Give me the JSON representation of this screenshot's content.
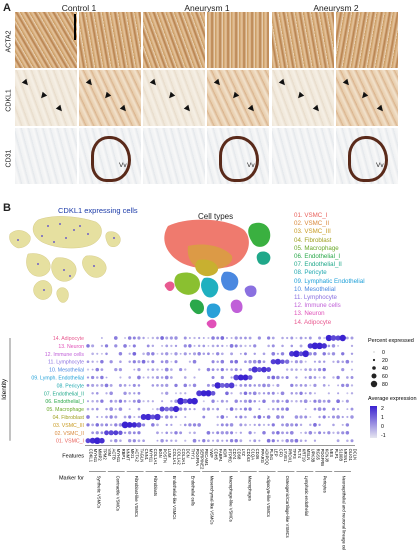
{
  "panel_a": {
    "letter": "A",
    "columns": [
      "Control 1",
      "Aneurysm 1",
      "Aneurysm 2"
    ],
    "rows": [
      "ACTA2",
      "CDKL1",
      "CD31"
    ],
    "vv_label": "Vv"
  },
  "panel_b": {
    "letter": "B",
    "umap1_title": "CDKL1 expressing cells",
    "umap2_title": "Cell types",
    "cell_types": [
      {
        "label": "01. VSMC_I",
        "color": "#e8605a"
      },
      {
        "label": "02. VSMC_II",
        "color": "#d8883a"
      },
      {
        "label": "03. VSMC_III",
        "color": "#c89a20"
      },
      {
        "label": "04. Fibroblast",
        "color": "#a0a020"
      },
      {
        "label": "05. Macrophage",
        "color": "#6aa82a"
      },
      {
        "label": "06. Endothelial_I",
        "color": "#2aa84a"
      },
      {
        "label": "07. Endothelial_II",
        "color": "#20a88a"
      },
      {
        "label": "08. Pericyte",
        "color": "#20a8b0"
      },
      {
        "label": "09. Lymphatic Endothelial",
        "color": "#20a0d8"
      },
      {
        "label": "10. Mesothelial",
        "color": "#4a88e0"
      },
      {
        "label": "11. Lymphocyte",
        "color": "#8a70e0"
      },
      {
        "label": "12. Immune cells",
        "color": "#c060d8"
      },
      {
        "label": "13. Neuron",
        "color": "#e050b8"
      },
      {
        "label": "14. Adipocyte",
        "color": "#e85a90"
      }
    ]
  },
  "chart_data": {
    "type": "scatter",
    "identity_label": "Identity",
    "features_label": "Features",
    "marker_for_label": "Marker for",
    "rows": [
      "14. Adipocyte",
      "13. Neuron",
      "12. Immune cells",
      "11. Lymphocyte",
      "10. Mesothelial",
      "09. Lymph. Endothelial",
      "08. Pericyte",
      "07. Endothelial_II",
      "06. Endothelial_I",
      "05. Macrophage",
      "04. Fibroblast",
      "03. VSMC_III",
      "02. VSMC_II",
      "01. VSMC_I"
    ],
    "features": [
      "CDKL1",
      "MYH11",
      "MMP2",
      "TPM2",
      "VIM",
      "ACTB",
      "MYH11",
      "RBP1",
      "NNMT",
      "MKI1",
      "ACTA2",
      "TAGLN",
      "CNN1",
      "MYH11",
      "COL1A1",
      "BGN",
      "POSTN",
      "LUM",
      "COL1A1",
      "COL1A2",
      "COL3A1",
      "DCN",
      "THY1",
      "PDGFRA",
      "SERPINE2",
      "PECAM1",
      "VWF",
      "CDH5",
      "FABP4",
      "KDR",
      "PTPRC",
      "CD74",
      "CD68",
      "LYZ",
      "CD163",
      "C1QA",
      "CD36",
      "PPARG",
      "ADIPOQ",
      "PLIN1",
      "LEP",
      "CFD",
      "LYVE1",
      "PROX1",
      "TFF3",
      "FLT4",
      "KRT19",
      "MSLN",
      "UPK3B",
      "RGS5",
      "PDGFRB",
      "KCNJ8",
      "NES",
      "PLP1",
      "S100B",
      "NRXN1",
      "OLIG1",
      "DCLN"
    ],
    "marker_groups": [
      "Synthetic VSMCs",
      "Contractile VSMCs",
      "Fibroblast-like VSMCs",
      "Fibroblasts",
      "Endothelial-like VSMCs",
      "Endothelial cells",
      "Mesenchymal-like VSMCs",
      "Macrophage-like VSMCs",
      "Macrophages",
      "Adipocyte-like VSMCs",
      "Osteogenic/Cartilage-like VSMCs",
      "Lymphatic endothelial",
      "Pericytes",
      "Neuroepithelial and neuronal lineage cells"
    ],
    "size_legend_title": "Percent expressed",
    "size_legend": [
      0,
      20,
      40,
      60,
      80
    ],
    "color_legend_title": "Average expression",
    "color_ticks": [
      2,
      1,
      0,
      -1
    ],
    "colors": {
      "low": "#e6e6ef",
      "high": "#3a22d0"
    }
  }
}
